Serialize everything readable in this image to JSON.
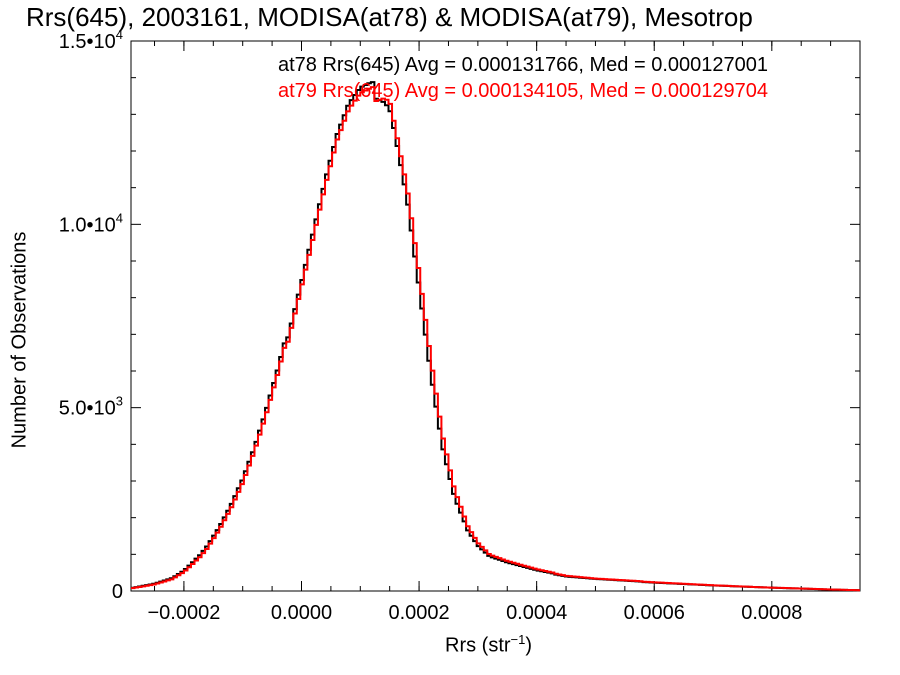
{
  "chart_data": {
    "type": "line",
    "title": "Rrs(645), 2003161, MODISA(at78) & MODISA(at79), Mesotrop",
    "xlabel": "Rrs (str",
    "xlabel_sup": "−1",
    "xlabel_end": ")",
    "ylabel": "Number of Observations",
    "xlim": [
      -0.00029,
      0.00095
    ],
    "ylim": [
      0,
      15000
    ],
    "x_ticks": [
      {
        "value": -0.0002,
        "label": "−0.0002"
      },
      {
        "value": 0.0,
        "label": "0.0000"
      },
      {
        "value": 0.0002,
        "label": "0.0002"
      },
      {
        "value": 0.0004,
        "label": "0.0004"
      },
      {
        "value": 0.0006,
        "label": "0.0006"
      },
      {
        "value": 0.0008,
        "label": "0.0008"
      }
    ],
    "y_ticks": [
      {
        "value": 0,
        "label": "0",
        "sup": ""
      },
      {
        "value": 5000,
        "label": "5.0•10",
        "sup": "3"
      },
      {
        "value": 10000,
        "label": "1.0•10",
        "sup": "4"
      },
      {
        "value": 15000,
        "label": "1.5•10",
        "sup": "4"
      }
    ],
    "annotations": [
      "at78 Rrs(645) Avg = 0.000131766, Med = 0.000127001",
      "at79 Rrs(645) Avg = 0.000134105, Med = 0.000129704"
    ],
    "series": [
      {
        "color": "#000000",
        "x": [
          -0.00029,
          -0.00025,
          -0.00022,
          -0.0002,
          -0.00018,
          -0.00016,
          -0.00014,
          -0.00012,
          -0.0001,
          -8e-05,
          -6e-05,
          -4e-05,
          -2e-05,
          0.0,
          2e-05,
          4e-05,
          6e-05,
          8e-05,
          0.0001,
          0.00012,
          0.00014,
          0.00015,
          0.00016,
          0.00018,
          0.0002,
          0.00022,
          0.00024,
          0.00026,
          0.00028,
          0.0003,
          0.00032,
          0.00035,
          0.0004,
          0.00045,
          0.0005,
          0.0006,
          0.0007,
          0.0008,
          0.0009,
          0.00095
        ],
        "values": [
          80,
          200,
          350,
          550,
          850,
          1250,
          1750,
          2350,
          3050,
          3900,
          4900,
          6000,
          7200,
          8500,
          9850,
          11200,
          12400,
          13200,
          13600,
          13700,
          13500,
          13300,
          12500,
          10700,
          8300,
          5900,
          3900,
          2550,
          1750,
          1250,
          950,
          780,
          560,
          400,
          330,
          230,
          150,
          90,
          40,
          20
        ]
      },
      {
        "color": "#ff0000",
        "x": [
          -0.00029,
          -0.00025,
          -0.00022,
          -0.0002,
          -0.00018,
          -0.00016,
          -0.00014,
          -0.00012,
          -0.0001,
          -8e-05,
          -6e-05,
          -4e-05,
          -2e-05,
          0.0,
          2e-05,
          4e-05,
          6e-05,
          8e-05,
          0.0001,
          0.00012,
          0.00014,
          0.00015,
          0.00016,
          0.00018,
          0.0002,
          0.00022,
          0.00024,
          0.00026,
          0.00028,
          0.0003,
          0.00032,
          0.00035,
          0.0004,
          0.00045,
          0.0005,
          0.0006,
          0.0007,
          0.0008,
          0.0009,
          0.00095
        ],
        "values": [
          70,
          180,
          320,
          510,
          800,
          1180,
          1680,
          2260,
          2950,
          3800,
          4780,
          5880,
          7080,
          8380,
          9700,
          11050,
          12250,
          13050,
          13450,
          13550,
          13600,
          13500,
          12700,
          11000,
          8700,
          6300,
          4200,
          2750,
          1870,
          1330,
          1000,
          820,
          590,
          420,
          340,
          240,
          155,
          92,
          42,
          20
        ]
      }
    ]
  }
}
